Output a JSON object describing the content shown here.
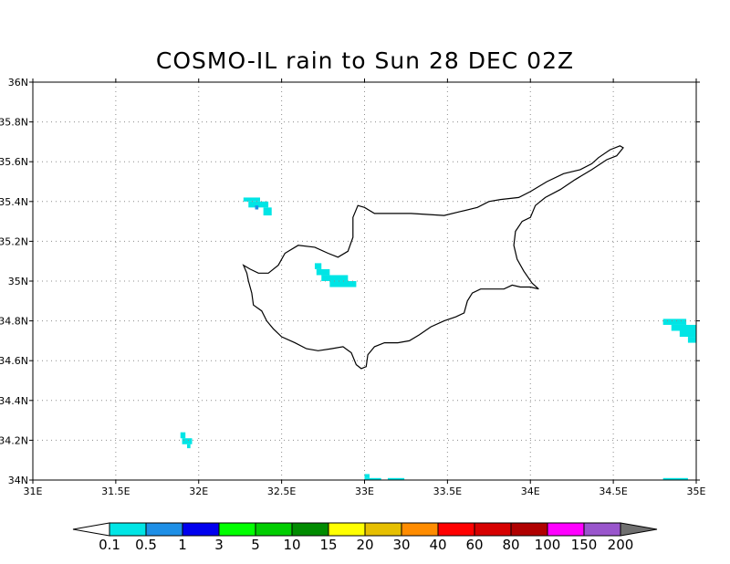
{
  "title": "COSMO-IL rain to Sun 28 DEC 02Z",
  "lon_labels": [
    "31E",
    "31.5E",
    "32E",
    "32.5E",
    "33E",
    "33.5E",
    "34E",
    "34.5E",
    "35E"
  ],
  "lat_labels": [
    "34N",
    "34.2N",
    "34.4N",
    "34.6N",
    "34.8N",
    "35N",
    "35.2N",
    "35.4N",
    "35.6N",
    "35.8N",
    "36N"
  ],
  "lon_range": [
    31,
    35
  ],
  "lat_range": [
    34,
    36
  ],
  "grid": true,
  "coastline": [
    [
      32.27,
      35.08
    ],
    [
      32.31,
      35.06
    ],
    [
      32.36,
      35.04
    ],
    [
      32.42,
      35.04
    ],
    [
      32.48,
      35.08
    ],
    [
      32.52,
      35.14
    ],
    [
      32.6,
      35.18
    ],
    [
      32.7,
      35.17
    ],
    [
      32.78,
      35.14
    ],
    [
      32.84,
      35.12
    ],
    [
      32.9,
      35.15
    ],
    [
      32.93,
      35.22
    ],
    [
      32.93,
      35.32
    ],
    [
      32.96,
      35.38
    ],
    [
      33.0,
      35.37
    ],
    [
      33.06,
      35.34
    ],
    [
      33.15,
      35.34
    ],
    [
      33.28,
      35.34
    ],
    [
      33.48,
      35.33
    ],
    [
      33.58,
      35.35
    ],
    [
      33.68,
      35.37
    ],
    [
      33.75,
      35.4
    ],
    [
      33.82,
      35.41
    ],
    [
      33.93,
      35.42
    ],
    [
      34.0,
      35.45
    ],
    [
      34.1,
      35.5
    ],
    [
      34.2,
      35.54
    ],
    [
      34.3,
      35.56
    ],
    [
      34.37,
      35.59
    ],
    [
      34.41,
      35.62
    ],
    [
      34.48,
      35.66
    ],
    [
      34.54,
      35.68
    ],
    [
      34.56,
      35.67
    ],
    [
      34.52,
      35.63
    ],
    [
      34.46,
      35.61
    ],
    [
      34.37,
      35.56
    ],
    [
      34.27,
      35.51
    ],
    [
      34.18,
      35.46
    ],
    [
      34.09,
      35.42
    ],
    [
      34.03,
      35.38
    ],
    [
      34.0,
      35.32
    ],
    [
      33.95,
      35.3
    ],
    [
      33.91,
      35.25
    ],
    [
      33.9,
      35.18
    ],
    [
      33.92,
      35.11
    ],
    [
      33.96,
      35.05
    ],
    [
      34.01,
      34.99
    ],
    [
      34.05,
      34.96
    ],
    [
      34.0,
      34.97
    ],
    [
      33.94,
      34.97
    ],
    [
      33.89,
      34.98
    ],
    [
      33.84,
      34.96
    ],
    [
      33.77,
      34.96
    ],
    [
      33.7,
      34.96
    ],
    [
      33.65,
      34.94
    ],
    [
      33.62,
      34.9
    ],
    [
      33.6,
      34.84
    ],
    [
      33.55,
      34.82
    ],
    [
      33.48,
      34.8
    ],
    [
      33.4,
      34.77
    ],
    [
      33.33,
      34.73
    ],
    [
      33.27,
      34.7
    ],
    [
      33.2,
      34.69
    ],
    [
      33.12,
      34.69
    ],
    [
      33.06,
      34.67
    ],
    [
      33.02,
      34.63
    ],
    [
      33.01,
      34.57
    ],
    [
      32.98,
      34.56
    ],
    [
      32.95,
      34.58
    ],
    [
      32.92,
      34.64
    ],
    [
      32.87,
      34.67
    ],
    [
      32.8,
      34.66
    ],
    [
      32.72,
      34.65
    ],
    [
      32.65,
      34.66
    ],
    [
      32.58,
      34.69
    ],
    [
      32.5,
      34.72
    ],
    [
      32.45,
      34.76
    ],
    [
      32.41,
      34.8
    ],
    [
      32.38,
      34.85
    ],
    [
      32.33,
      34.88
    ],
    [
      32.32,
      34.94
    ],
    [
      32.3,
      35.0
    ],
    [
      32.29,
      35.04
    ],
    [
      32.27,
      35.08
    ]
  ],
  "rain_cells": [
    {
      "lon": 32.27,
      "lat": 35.4,
      "w": 0.1,
      "h": 0.02,
      "c": "#00e5e5"
    },
    {
      "lon": 32.3,
      "lat": 35.37,
      "w": 0.12,
      "h": 0.03,
      "c": "#00e5e5"
    },
    {
      "lon": 32.34,
      "lat": 35.36,
      "w": 0.02,
      "h": 0.02,
      "c": "#1e8fe6"
    },
    {
      "lon": 32.39,
      "lat": 35.33,
      "w": 0.05,
      "h": 0.04,
      "c": "#00e5e5"
    },
    {
      "lon": 32.7,
      "lat": 35.06,
      "w": 0.04,
      "h": 0.03,
      "c": "#00e5e5"
    },
    {
      "lon": 32.71,
      "lat": 35.03,
      "w": 0.08,
      "h": 0.03,
      "c": "#00e5e5"
    },
    {
      "lon": 32.74,
      "lat": 35.0,
      "w": 0.16,
      "h": 0.03,
      "c": "#00e5e5"
    },
    {
      "lon": 32.79,
      "lat": 34.97,
      "w": 0.16,
      "h": 0.03,
      "c": "#00e5e5"
    },
    {
      "lon": 34.8,
      "lat": 34.78,
      "w": 0.14,
      "h": 0.03,
      "c": "#00e5e5"
    },
    {
      "lon": 34.85,
      "lat": 34.75,
      "w": 0.15,
      "h": 0.03,
      "c": "#00e5e5"
    },
    {
      "lon": 34.9,
      "lat": 34.72,
      "w": 0.1,
      "h": 0.03,
      "c": "#00e5e5"
    },
    {
      "lon": 34.95,
      "lat": 34.69,
      "w": 0.05,
      "h": 0.03,
      "c": "#00e5e5"
    },
    {
      "lon": 31.89,
      "lat": 34.21,
      "w": 0.03,
      "h": 0.03,
      "c": "#00e5e5"
    },
    {
      "lon": 31.9,
      "lat": 34.18,
      "w": 0.06,
      "h": 0.03,
      "c": "#00e5e5"
    },
    {
      "lon": 31.93,
      "lat": 34.16,
      "w": 0.02,
      "h": 0.02,
      "c": "#00e5e5"
    },
    {
      "lon": 33.0,
      "lat": 34.01,
      "w": 0.03,
      "h": 0.02,
      "c": "#00e5e5"
    },
    {
      "lon": 33.0,
      "lat": 34.0,
      "w": 0.1,
      "h": 0.01,
      "c": "#00e5e5"
    },
    {
      "lon": 33.14,
      "lat": 34.0,
      "w": 0.1,
      "h": 0.01,
      "c": "#00e5e5"
    },
    {
      "lon": 34.8,
      "lat": 34.0,
      "w": 0.15,
      "h": 0.01,
      "c": "#00e5e5"
    }
  ],
  "colorbar": {
    "colors": [
      "#00e5e5",
      "#1e8fe6",
      "#0000ee",
      "#00ff00",
      "#00cd00",
      "#008b00",
      "#ffff00",
      "#e6bf00",
      "#ff8c00",
      "#ff0000",
      "#d70000",
      "#b00000",
      "#ff00ff",
      "#9955cc"
    ],
    "labels": [
      "0.1",
      "0.5",
      "1",
      "3",
      "5",
      "10",
      "15",
      "20",
      "30",
      "40",
      "60",
      "80",
      "100",
      "150",
      "200"
    ]
  }
}
